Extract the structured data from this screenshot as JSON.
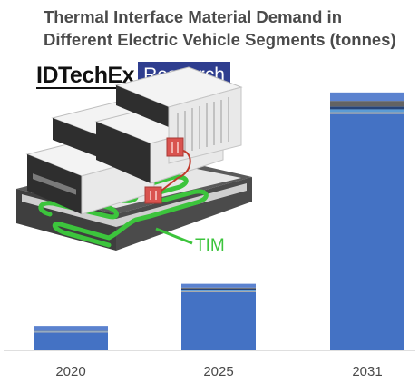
{
  "chart_data": {
    "type": "bar",
    "stacked": true,
    "title_lines": [
      "Thermal Interface Material Demand in",
      "Different Electric Vehicle Segments (tonnes)"
    ],
    "categories": [
      "2020",
      "2025",
      "2031"
    ],
    "series": [
      {
        "color": "#4472c4",
        "values": [
          19,
          62,
          252
        ]
      },
      {
        "color": "#a5a5a5",
        "values": [
          1,
          1,
          2
        ]
      },
      {
        "color": "#5b9bd5",
        "values": [
          0.5,
          1,
          3
        ]
      },
      {
        "color": "#264478",
        "values": [
          0.5,
          2,
          3
        ]
      },
      {
        "color": "#636363",
        "values": [
          0,
          1,
          6
        ]
      },
      {
        "color": "#5b82cf",
        "values": [
          5,
          4,
          9
        ]
      }
    ],
    "ylim": [
      0,
      300
    ],
    "grid": false,
    "legend": "none",
    "xlabel": "",
    "ylabel": ""
  },
  "logo": {
    "brand": "IDTechEx",
    "tag": "Research"
  },
  "illustration": {
    "label": "TIM",
    "accent_color": "#3cc43c"
  }
}
